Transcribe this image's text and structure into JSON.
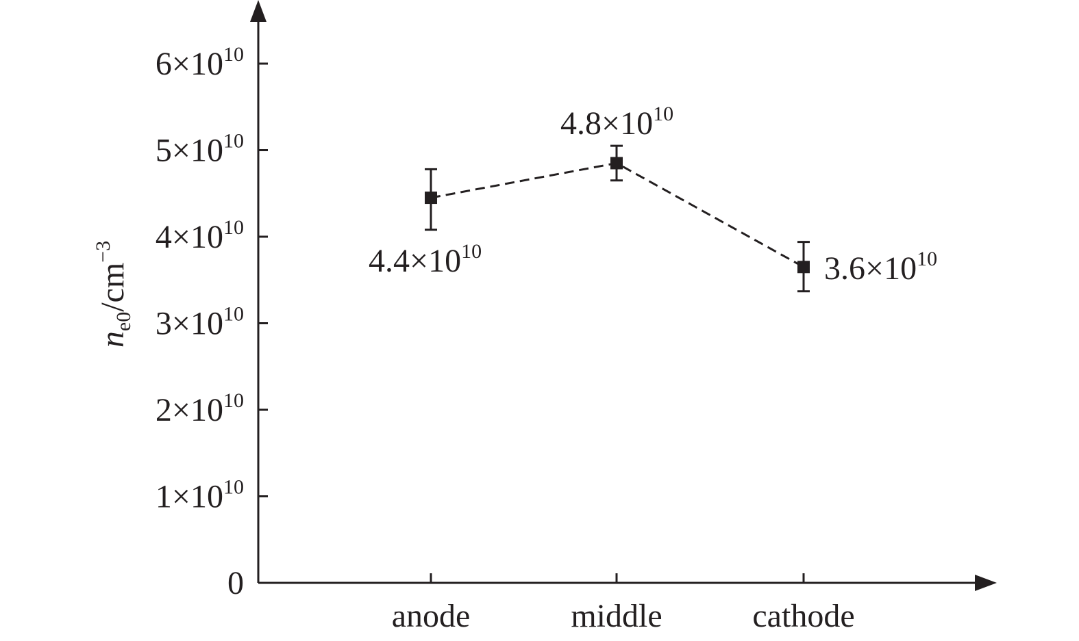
{
  "chart_data": {
    "type": "line",
    "title": "",
    "xlabel": "",
    "ylabel": {
      "symbol": "n",
      "subscript": "e0",
      "unit": "/cm",
      "unit_exponent": "−3"
    },
    "categories": [
      "anode",
      "middle",
      "cathode"
    ],
    "series": [
      {
        "values": [
          44500000000.0,
          48500000000.0,
          36500000000.0
        ],
        "error_low": [
          40800000000.0,
          46500000000.0,
          33700000000.0
        ],
        "error_high": [
          47800000000.0,
          50500000000.0,
          39400000000.0
        ],
        "marker": "square",
        "line_style": "dashed",
        "color": "#231f20"
      }
    ],
    "data_labels": [
      {
        "mantissa": "4.4×10",
        "exponent": "10",
        "position": "below-left"
      },
      {
        "mantissa": "4.8×10",
        "exponent": "10",
        "position": "above"
      },
      {
        "mantissa": "3.6×10",
        "exponent": "10",
        "position": "right"
      }
    ],
    "yticks": [
      {
        "value": 0,
        "mantissa": "0",
        "exponent": ""
      },
      {
        "value": 10000000000.0,
        "mantissa": "1×10",
        "exponent": "10"
      },
      {
        "value": 20000000000.0,
        "mantissa": "2×10",
        "exponent": "10"
      },
      {
        "value": 30000000000.0,
        "mantissa": "3×10",
        "exponent": "10"
      },
      {
        "value": 40000000000.0,
        "mantissa": "4×10",
        "exponent": "10"
      },
      {
        "value": 50000000000.0,
        "mantissa": "5×10",
        "exponent": "10"
      },
      {
        "value": 60000000000.0,
        "mantissa": "6×10",
        "exponent": "10"
      }
    ],
    "ylim": [
      0,
      66000000000.0
    ],
    "grid": false,
    "legend": "none"
  }
}
